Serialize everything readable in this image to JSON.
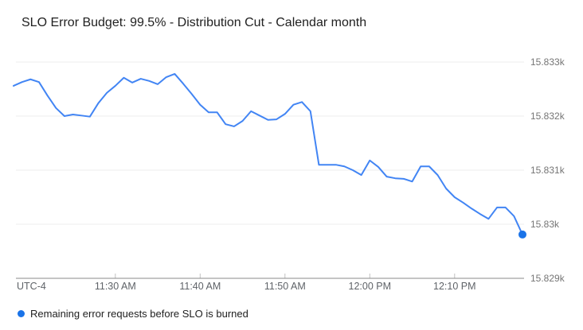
{
  "header": {
    "title": "SLO Error Budget: 99.5% - Distribution Cut - Calendar month"
  },
  "legend": {
    "items": [
      {
        "label": "Remaining error requests before SLO is burned",
        "color": "#1A73E8"
      }
    ]
  },
  "colors": {
    "line": "#4285F4",
    "endpoint": "#1A73E8",
    "grid": "#EDEDED",
    "axis": "#8A8A8A",
    "tick": "#C2C2C2",
    "x_label": "#5F6368",
    "y_label": "#757575",
    "title_text": "#212121"
  },
  "chart_data": {
    "type": "line",
    "title": "SLO Error Budget: 99.5% - Distribution Cut - Calendar month",
    "xlabel": "",
    "ylabel": "",
    "timezone_label": "UTC-4",
    "grid": "horizontal",
    "legend_position": "bottom",
    "last_point_marker": true,
    "ylim": [
      15829,
      15833
    ],
    "y_tick_values": [
      15833,
      15832,
      15831,
      15830,
      15829
    ],
    "y_tick_labels": [
      "15.833k",
      "15.832k",
      "15.831k",
      "15.83k",
      "15.829k"
    ],
    "x_tick_labels": [
      "11:30 AM",
      "11:40 AM",
      "11:50 AM",
      "12:00 PM",
      "12:10 PM"
    ],
    "x": [
      "11:18 AM",
      "11:19 AM",
      "11:20 AM",
      "11:21 AM",
      "11:22 AM",
      "11:23 AM",
      "11:24 AM",
      "11:25 AM",
      "11:26 AM",
      "11:27 AM",
      "11:28 AM",
      "11:29 AM",
      "11:30 AM",
      "11:31 AM",
      "11:32 AM",
      "11:33 AM",
      "11:34 AM",
      "11:35 AM",
      "11:36 AM",
      "11:37 AM",
      "11:38 AM",
      "11:39 AM",
      "11:40 AM",
      "11:41 AM",
      "11:42 AM",
      "11:43 AM",
      "11:44 AM",
      "11:45 AM",
      "11:46 AM",
      "11:47 AM",
      "11:48 AM",
      "11:49 AM",
      "11:50 AM",
      "11:51 AM",
      "11:52 AM",
      "11:53 AM",
      "11:54 AM",
      "11:55 AM",
      "11:56 AM",
      "11:57 AM",
      "11:58 AM",
      "11:59 AM",
      "12:00 PM",
      "12:01 PM",
      "12:02 PM",
      "12:03 PM",
      "12:04 PM",
      "12:05 PM",
      "12:06 PM",
      "12:07 PM",
      "12:08 PM",
      "12:09 PM",
      "12:10 PM",
      "12:11 PM",
      "12:12 PM",
      "12:13 PM",
      "12:14 PM",
      "12:15 PM",
      "12:16 PM",
      "12:17 PM",
      "12:18 PM"
    ],
    "series": [
      {
        "name": "Remaining error requests before SLO is burned",
        "values": [
          15832.56,
          15832.63,
          15832.68,
          15832.63,
          15832.38,
          15832.15,
          15832.0,
          15832.03,
          15832.01,
          15831.99,
          15832.24,
          15832.43,
          15832.56,
          15832.71,
          15832.62,
          15832.69,
          15832.65,
          15832.59,
          15832.72,
          15832.78,
          15832.6,
          15832.41,
          15832.21,
          15832.07,
          15832.07,
          15831.85,
          15831.81,
          15831.91,
          15832.09,
          15832.01,
          15831.93,
          15831.94,
          15832.04,
          15832.21,
          15832.26,
          15832.09,
          15831.1,
          15831.1,
          15831.1,
          15831.07,
          15831.0,
          15830.91,
          15831.18,
          15831.06,
          15830.88,
          15830.85,
          15830.84,
          15830.79,
          15831.07,
          15831.07,
          15830.91,
          15830.66,
          15830.5,
          15830.4,
          15830.29,
          15830.19,
          15830.1,
          15830.31,
          15830.31,
          15830.15,
          15829.81
        ]
      }
    ]
  }
}
